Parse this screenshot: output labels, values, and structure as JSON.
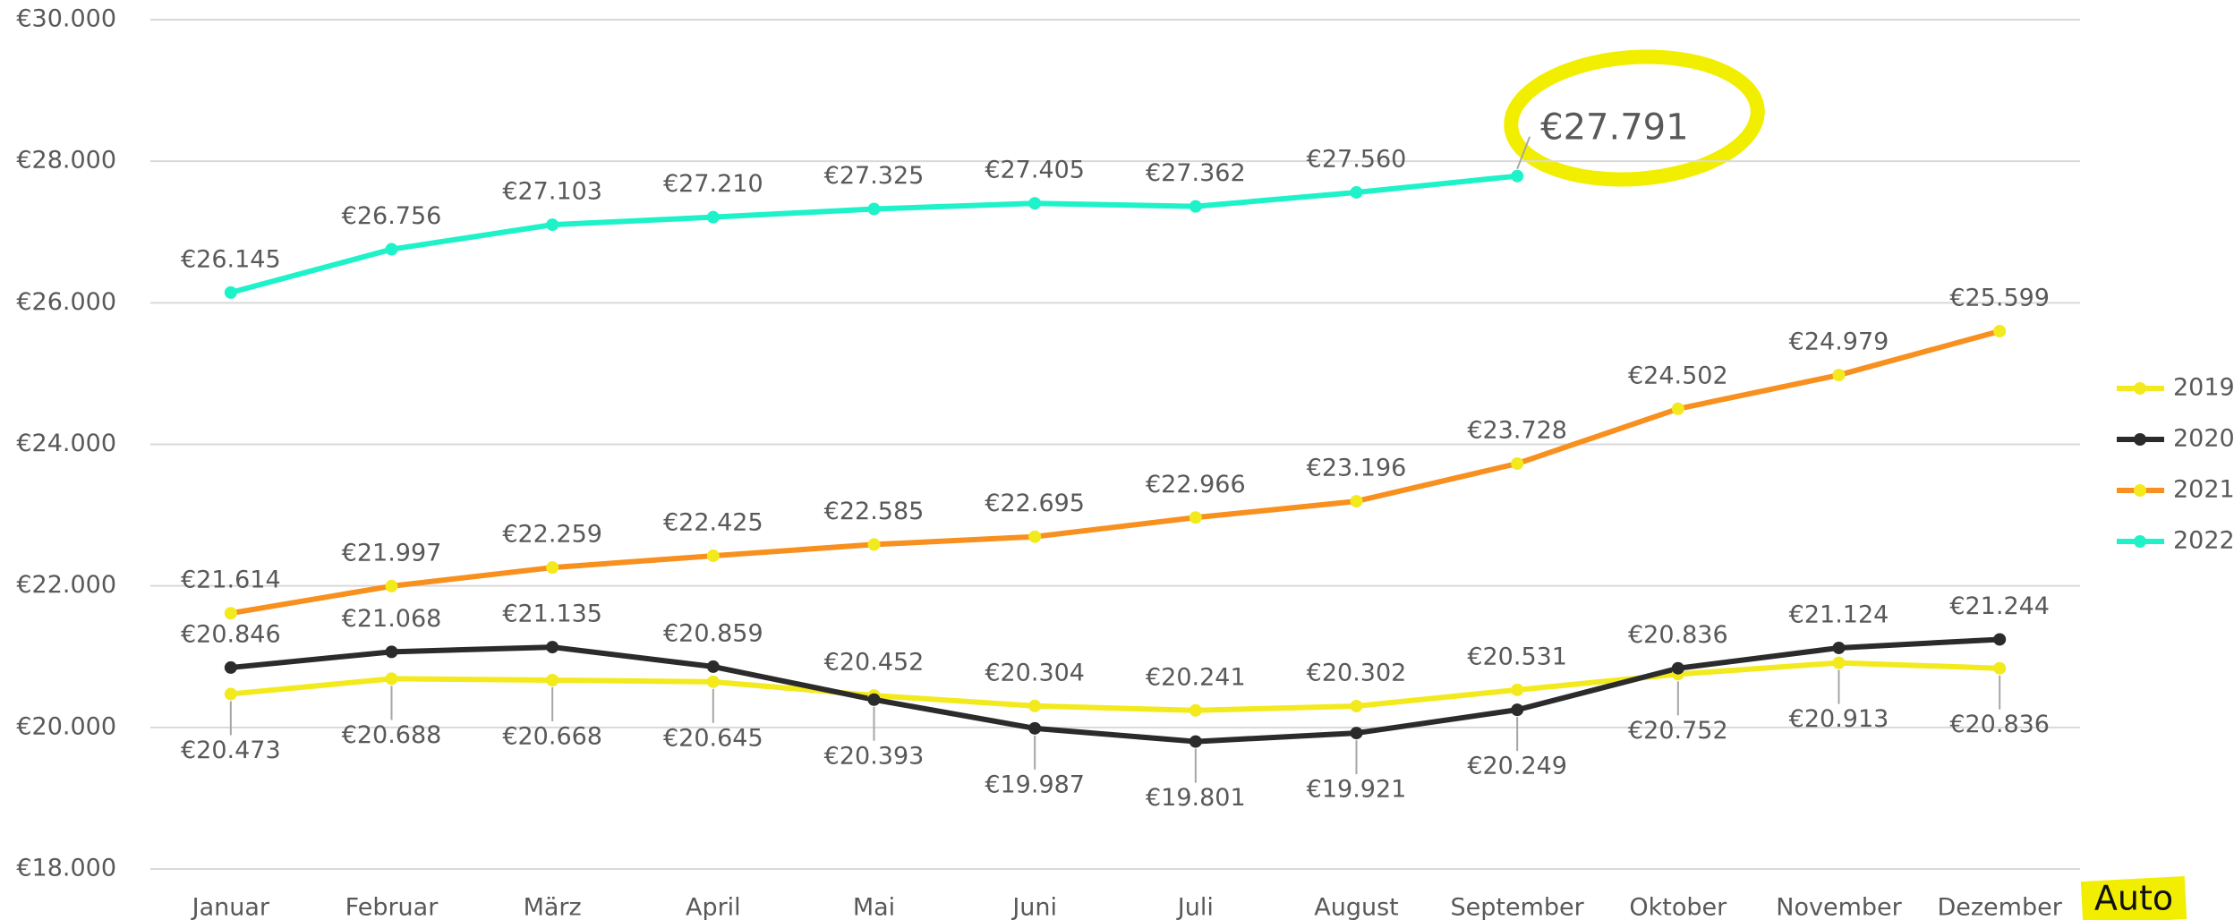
{
  "chart_data": {
    "type": "line",
    "categories": [
      "Januar",
      "Februar",
      "März",
      "April",
      "Mai",
      "Juni",
      "Juli",
      "August",
      "September",
      "Oktober",
      "November",
      "Dezember"
    ],
    "ylim": [
      18000,
      30000
    ],
    "yticks": [
      {
        "value": 18000,
        "label": "€18.000"
      },
      {
        "value": 20000,
        "label": "€20.000"
      },
      {
        "value": 22000,
        "label": "€22.000"
      },
      {
        "value": 24000,
        "label": "€24.000"
      },
      {
        "value": 26000,
        "label": "€26.000"
      },
      {
        "value": 28000,
        "label": "€28.000"
      },
      {
        "value": 30000,
        "label": "€30.000"
      }
    ],
    "grid": true,
    "legend": "right",
    "annotation": "Auto",
    "series": [
      {
        "name": "2019",
        "color": "#f2ea1c",
        "marker_color": "#f2ea1c",
        "values": [
          20473,
          20688,
          20668,
          20645,
          20452,
          20304,
          20241,
          20302,
          20531,
          20752,
          20913,
          20836
        ],
        "value_labels": [
          "€20.473",
          "€20.688",
          "€20.668",
          "€20.645",
          "€20.452",
          "€20.304",
          "€20.241",
          "€20.302",
          "€20.531",
          "€20.752",
          "€20.913",
          "€20.836"
        ]
      },
      {
        "name": "2020",
        "color": "#2b2b2b",
        "marker_color": "#2b2b2b",
        "values": [
          20846,
          21068,
          21135,
          20859,
          20393,
          19987,
          19801,
          19921,
          20249,
          20836,
          21124,
          21244
        ],
        "value_labels": [
          "€20.846",
          "€21.068",
          "€21.135",
          "€20.859",
          "€20.393",
          "€19.987",
          "€19.801",
          "€19.921",
          "€20.249",
          "€20.836",
          "€21.124",
          "€21.244"
        ]
      },
      {
        "name": "2021",
        "color": "#f7901e",
        "marker_color": "#f2ea1c",
        "values": [
          21614,
          21997,
          22259,
          22425,
          22585,
          22695,
          22966,
          23196,
          23728,
          24502,
          24979,
          25599
        ],
        "value_labels": [
          "€21.614",
          "€21.997",
          "€22.259",
          "€22.425",
          "€22.585",
          "€22.695",
          "€22.966",
          "€23.196",
          "€23.728",
          "€24.502",
          "€24.979",
          "€25.599"
        ]
      },
      {
        "name": "2022",
        "color": "#1ef2c9",
        "marker_color": "#1ef2c9",
        "values": [
          26145,
          26756,
          27103,
          27210,
          27325,
          27405,
          27362,
          27560,
          27791,
          null,
          null,
          null
        ],
        "value_labels": [
          "€26.145",
          "€26.756",
          "€27.103",
          "€27.210",
          "€27.325",
          "€27.405",
          "€27.362",
          "€27.560",
          "€27.791",
          null,
          null,
          null
        ]
      }
    ]
  }
}
